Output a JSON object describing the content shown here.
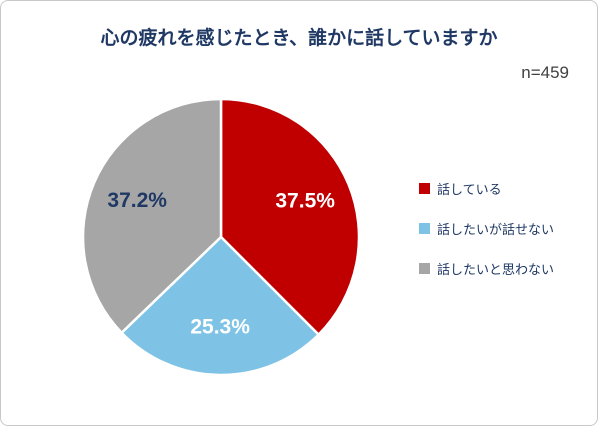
{
  "chart_data": {
    "type": "pie",
    "title": "心の疲れを感じたとき、誰かに話していますか",
    "sample_size_label": "n=459",
    "start_angle_deg": 0,
    "direction": "clockwise",
    "legend_position": "right",
    "slices": [
      {
        "label": "話している",
        "value": 37.5,
        "display": "37.5%",
        "color": "#C00000",
        "label_color": "#FFFFFF"
      },
      {
        "label": "話したいが話せない",
        "value": 25.3,
        "display": "25.3%",
        "color": "#7EC3E6",
        "label_color": "#FFFFFF"
      },
      {
        "label": "話したいと思わない",
        "value": 37.2,
        "display": "37.2%",
        "color": "#A6A6A6",
        "label_color": "#1F3864"
      }
    ],
    "colors": {
      "title_text": "#1F3864",
      "legend_text": "#1F3864",
      "slice_separator": "#FFFFFF"
    }
  }
}
